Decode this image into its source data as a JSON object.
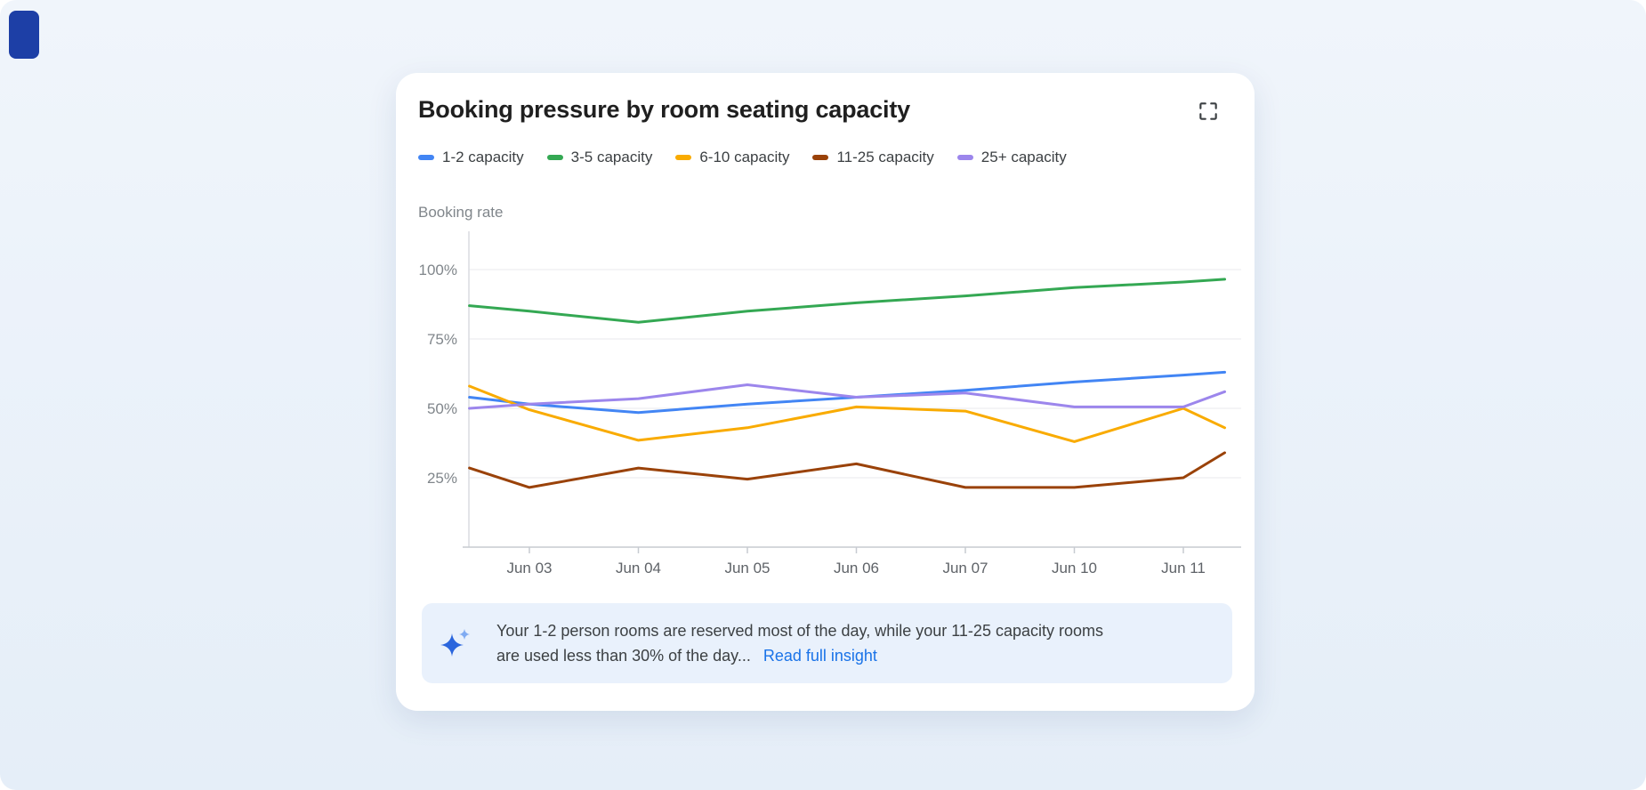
{
  "page": {
    "corner_accent_color": "#1D3FA6"
  },
  "card": {
    "title": "Booking pressure by room seating capacity",
    "expand_icon": "fullscreen-expand-icon",
    "legend": [
      {
        "label": "1-2 capacity",
        "color": "#4285F4"
      },
      {
        "label": "3-5 capacity",
        "color": "#34A853"
      },
      {
        "label": "6-10 capacity",
        "color": "#F9AB00"
      },
      {
        "label": "11-25 capacity",
        "color": "#9A4209"
      },
      {
        "label": "25+ capacity",
        "color": "#9C86EC"
      }
    ],
    "insight": {
      "icon": "sparkle-icon",
      "icon_colors": [
        "#2B66DD",
        "#7FABF2"
      ],
      "text_line1": "Your 1-2 person rooms are reserved most of the day, while your 11-25 capacity rooms",
      "text_line2": "are used less than 30% of the day...",
      "link_label": "Read full insight",
      "link_color": "#1A73E8"
    }
  },
  "chart_data": {
    "type": "line",
    "title": "Booking pressure by room seating capacity",
    "ylabel": "Booking rate",
    "xlabel": "",
    "y_ticks": [
      "100%",
      "75%",
      "50%",
      "25%"
    ],
    "ylim": [
      0,
      113
    ],
    "grid": true,
    "legend_position": "top",
    "categories": [
      "Jun 03",
      "Jun 04",
      "Jun 05",
      "Jun 06",
      "Jun 07",
      "Jun 10",
      "Jun 11"
    ],
    "x_day_positions": [
      -0.55,
      0,
      1,
      2,
      3,
      4,
      5,
      6,
      6.38
    ],
    "series": [
      {
        "name": "1-2 capacity",
        "color": "#4285F4",
        "values": [
          54,
          51.5,
          48.5,
          51.5,
          54,
          56.5,
          59.5,
          62,
          63
        ]
      },
      {
        "name": "3-5 capacity",
        "color": "#34A853",
        "values": [
          87,
          85,
          81,
          85,
          88,
          90.5,
          93.5,
          95.5,
          96.5
        ]
      },
      {
        "name": "6-10 capacity",
        "color": "#F9AB00",
        "values": [
          58,
          49.5,
          38.5,
          43,
          50.5,
          49,
          38,
          50,
          43
        ]
      },
      {
        "name": "11-25 capacity",
        "color": "#9A4209",
        "values": [
          28.5,
          21.5,
          28.5,
          24.5,
          30,
          21.5,
          21.5,
          25,
          34
        ]
      },
      {
        "name": "25+ capacity",
        "color": "#9C86EC",
        "values": [
          50,
          51.5,
          53.5,
          58.5,
          54,
          55.5,
          50.5,
          50.5,
          56
        ]
      }
    ]
  }
}
